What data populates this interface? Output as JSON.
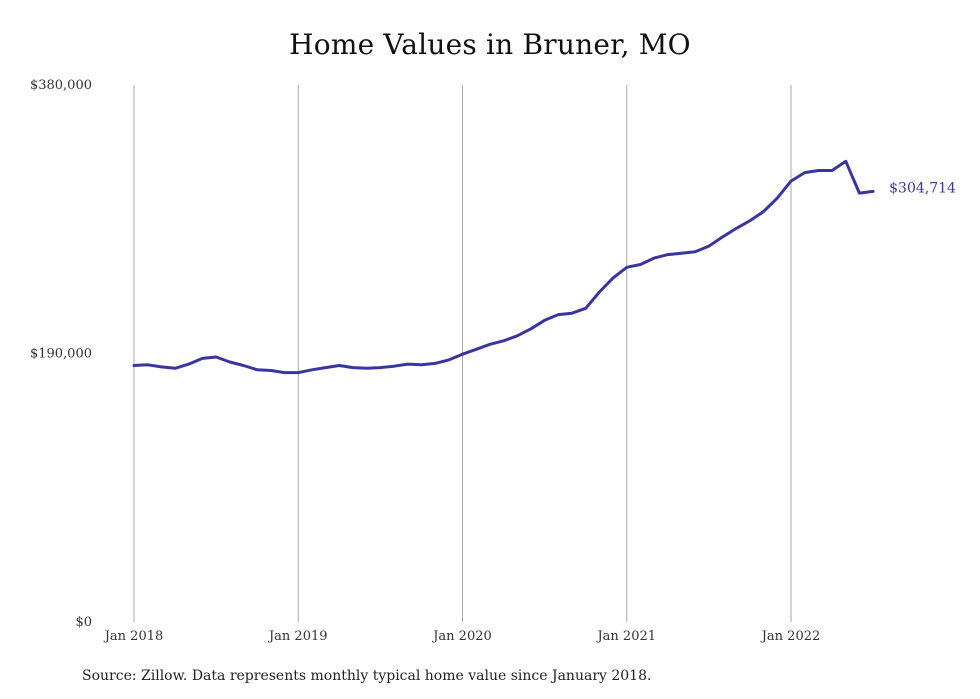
{
  "title": "Home Values in Bruner, MO",
  "source": "Source: Zillow. Data represents monthly typical home value since January 2018.",
  "colors": {
    "line": "#3a36a0",
    "grid": "#aaaaaa",
    "text": "#333333"
  },
  "chart_data": {
    "type": "line",
    "title": "Home Values in Bruner, MO",
    "xlabel": "",
    "ylabel": "",
    "ylim": [
      0,
      380000
    ],
    "yticks": [
      {
        "value": 0,
        "label": "$0"
      },
      {
        "value": 190000,
        "label": "$190,000"
      },
      {
        "value": 380000,
        "label": "$380,000"
      }
    ],
    "xticks": [
      {
        "index": 0,
        "label": "Jan 2018"
      },
      {
        "index": 12,
        "label": "Jan 2019"
      },
      {
        "index": 24,
        "label": "Jan 2020"
      },
      {
        "index": 36,
        "label": "Jan 2021"
      },
      {
        "index": 48,
        "label": "Jan 2022"
      }
    ],
    "grid": "vertical",
    "end_label": "$304,714",
    "series": [
      {
        "values": [
          181500,
          182000,
          180500,
          179500,
          182500,
          186500,
          187500,
          184000,
          181500,
          178500,
          178000,
          176500,
          176500,
          178500,
          180000,
          181500,
          180000,
          179500,
          180000,
          181000,
          182500,
          182000,
          183000,
          185500,
          189500,
          193000,
          196500,
          199000,
          202500,
          207500,
          213500,
          217500,
          218500,
          222000,
          233500,
          243500,
          251000,
          253000,
          257500,
          260000,
          261000,
          262000,
          266000,
          272500,
          278500,
          284000,
          290500,
          300000,
          312000,
          318000,
          319500,
          319500,
          326000,
          303500,
          304714
        ]
      }
    ]
  }
}
